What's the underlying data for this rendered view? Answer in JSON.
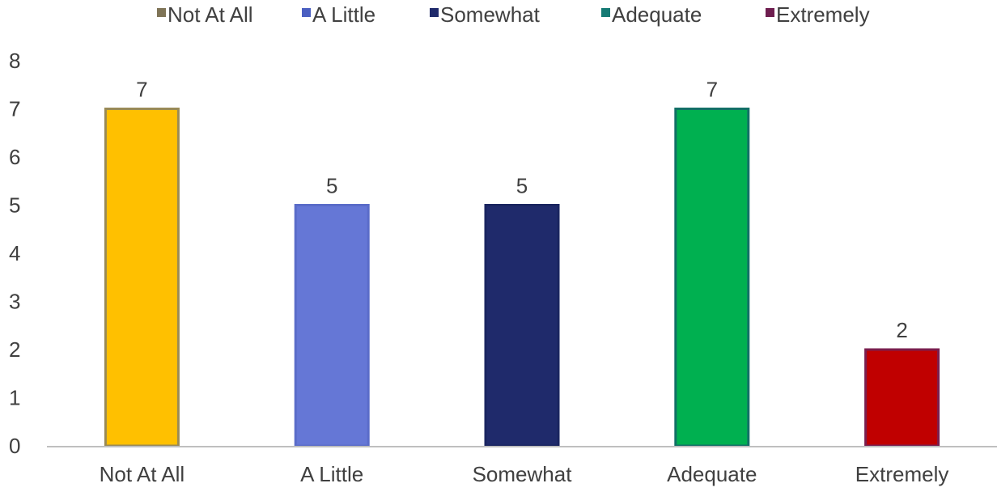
{
  "chart_data": {
    "type": "bar",
    "title": "",
    "xlabel": "",
    "ylabel": "",
    "categories": [
      "Not At All",
      "A Little",
      "Somewhat",
      "Adequate",
      "Extremely"
    ],
    "values": [
      7,
      5,
      5,
      7,
      2
    ],
    "ylim": [
      0,
      8
    ],
    "y_ticks": [
      "0",
      "1",
      "2",
      "3",
      "4",
      "5",
      "6",
      "7",
      "7",
      "8"
    ],
    "y_tick_values": [
      0,
      1,
      2,
      3,
      4,
      5,
      6,
      7,
      7,
      8
    ],
    "data_labels": [
      "7",
      "5",
      "5",
      "7",
      "2"
    ],
    "grid": false,
    "legend_position": "top",
    "legend": [
      {
        "label": "Not At All",
        "color": "#7f7457"
      },
      {
        "label": "A Little",
        "color": "#4a5fc1"
      },
      {
        "label": "Somewhat",
        "color": "#1f2a6b"
      },
      {
        "label": "Adequate",
        "color": "#157a74"
      },
      {
        "label": "Extremely",
        "color": "#6e1e4f"
      }
    ],
    "bar_fills": [
      "#ffc000",
      "#6577d6",
      "#1f2a6b",
      "#00b050",
      "#c00000"
    ],
    "bar_borders": [
      "#9a8a55",
      "#5a6cc9",
      "#1a2560",
      "#127066",
      "#7a1e4e"
    ],
    "axis_color": "#bfbfbf"
  }
}
